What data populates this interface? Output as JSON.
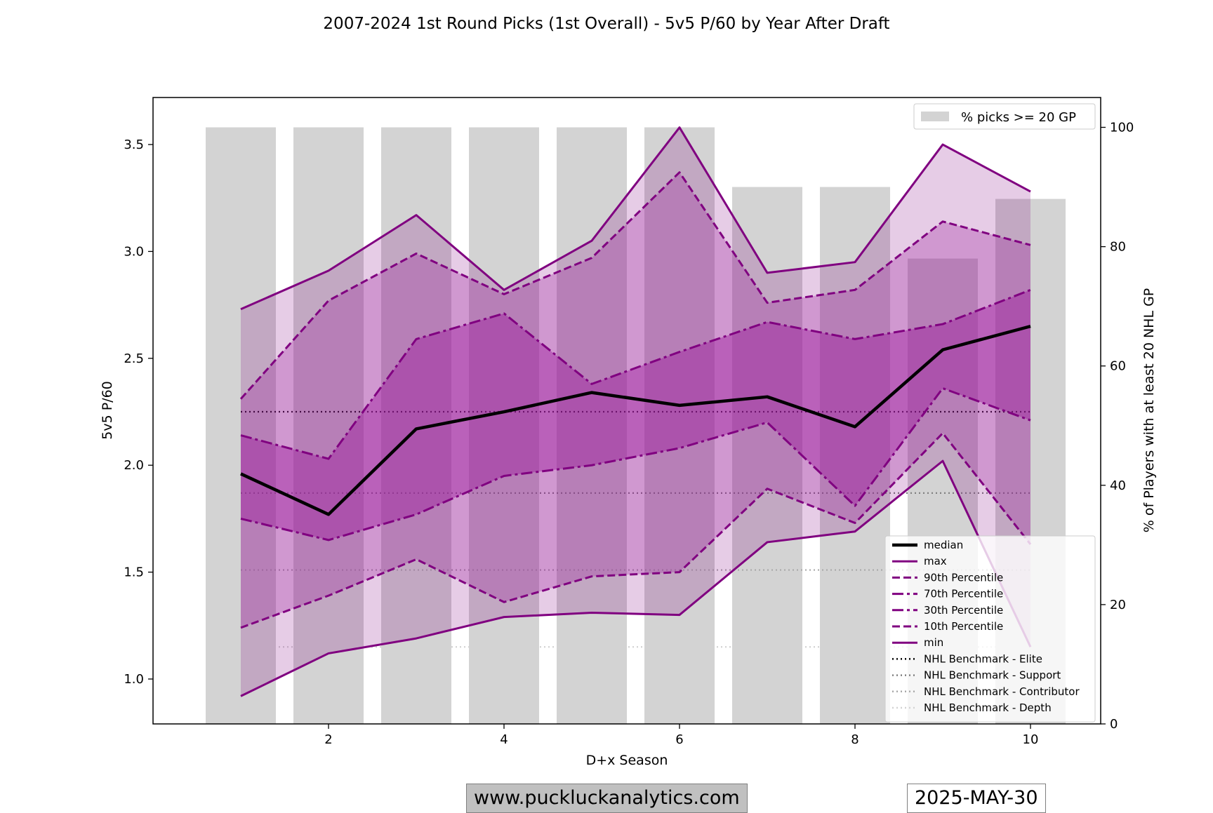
{
  "chart_data": {
    "type": "line",
    "title": "2007-2024 1st Round Picks (1st Overall) - 5v5 P/60 by Year After Draft",
    "xlabel": "D+x Season",
    "ylabel": "5v5 P/60",
    "y2label": "% of Players with at least 20 NHL GP",
    "xlim": [
      0.0,
      10.8
    ],
    "ylim": [
      0.79,
      3.72
    ],
    "y2lim": [
      0,
      105
    ],
    "xticks": [
      2,
      4,
      6,
      8,
      10
    ],
    "yticks": [
      1.0,
      1.5,
      2.0,
      2.5,
      3.0,
      3.5
    ],
    "y2ticks": [
      0,
      20,
      40,
      60,
      80,
      100
    ],
    "x": [
      1,
      2,
      3,
      4,
      5,
      6,
      7,
      8,
      9,
      10
    ],
    "bars": {
      "name": "% picks >= 20 GP",
      "values": [
        100,
        100,
        100,
        100,
        100,
        100,
        90,
        90,
        78,
        88
      ],
      "color": "#d3d3d3"
    },
    "series": [
      {
        "name": "max",
        "style": "solid",
        "color": "#800080",
        "width": 3,
        "values": [
          2.73,
          2.91,
          3.17,
          2.82,
          3.05,
          3.58,
          2.9,
          2.95,
          3.5,
          3.28
        ]
      },
      {
        "name": "90th Percentile",
        "style": "dashed",
        "color": "#800080",
        "width": 3,
        "values": [
          2.31,
          2.77,
          2.99,
          2.8,
          2.97,
          3.37,
          2.76,
          2.82,
          3.14,
          3.03
        ]
      },
      {
        "name": "70th Percentile",
        "style": "dashdot",
        "color": "#800080",
        "width": 3,
        "values": [
          2.14,
          2.03,
          2.59,
          2.71,
          2.38,
          2.53,
          2.67,
          2.59,
          2.66,
          2.82
        ]
      },
      {
        "name": "30th Percentile",
        "style": "dashdot",
        "color": "#800080",
        "width": 3,
        "values": [
          1.75,
          1.65,
          1.77,
          1.95,
          2.0,
          2.08,
          2.2,
          1.81,
          2.36,
          2.21
        ]
      },
      {
        "name": "10th Percentile",
        "style": "dashed",
        "color": "#800080",
        "width": 3,
        "values": [
          1.24,
          1.39,
          1.56,
          1.36,
          1.48,
          1.5,
          1.89,
          1.73,
          2.15,
          1.63
        ]
      },
      {
        "name": "min",
        "style": "solid",
        "color": "#800080",
        "width": 3,
        "values": [
          0.92,
          1.12,
          1.19,
          1.29,
          1.31,
          1.3,
          1.64,
          1.69,
          2.02,
          1.15
        ]
      },
      {
        "name": "median",
        "style": "solid",
        "color": "#000000",
        "width": 4.5,
        "values": [
          1.96,
          1.77,
          2.17,
          2.25,
          2.34,
          2.28,
          2.32,
          2.18,
          2.54,
          2.65
        ]
      }
    ],
    "bands": [
      {
        "lower": "min",
        "upper": "max",
        "color": "#800080",
        "opacity": 0.2
      },
      {
        "lower": "10th Percentile",
        "upper": "90th Percentile",
        "color": "#a020a0",
        "opacity": 0.3
      },
      {
        "lower": "30th Percentile",
        "upper": "70th Percentile",
        "color": "#a020a0",
        "opacity": 0.45
      }
    ],
    "benchmarks": [
      {
        "name": "NHL Benchmark - Elite",
        "value": 2.25,
        "color": "#000000"
      },
      {
        "name": "NHL Benchmark - Support",
        "value": 1.87,
        "color": "#808080"
      },
      {
        "name": "NHL Benchmark - Contributor",
        "value": 1.51,
        "color": "#a9a9a9"
      },
      {
        "name": "NHL Benchmark - Depth",
        "value": 1.15,
        "color": "#d3d3d3"
      }
    ],
    "legend_bars_placement": "top-right",
    "legend_lines_placement": "lower-right",
    "grid": false
  },
  "footer": {
    "website": "www.puckluckanalytics.com",
    "date": "2025-MAY-30"
  }
}
